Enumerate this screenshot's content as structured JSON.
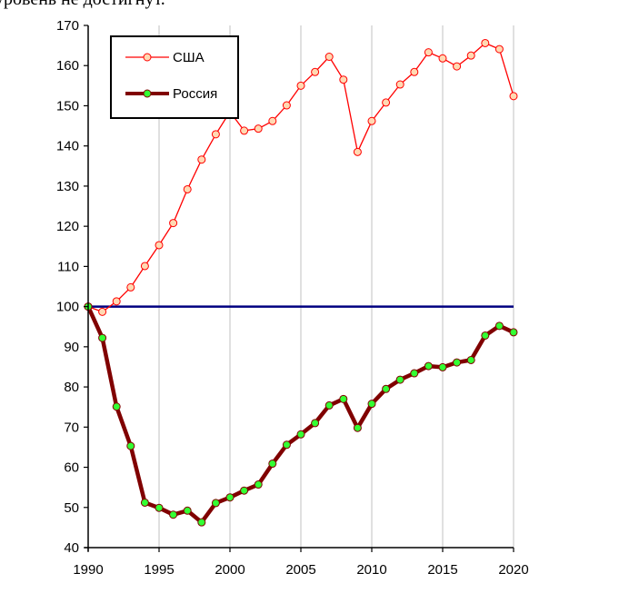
{
  "page_text": {
    "truncated_line": "уровень не достигнут."
  },
  "chart_data": {
    "type": "line",
    "xlim": [
      1990,
      2020
    ],
    "ylim": [
      40,
      170
    ],
    "xticks": [
      1990,
      1995,
      2000,
      2005,
      2010,
      2015,
      2020
    ],
    "yticks": [
      40,
      50,
      60,
      70,
      80,
      90,
      100,
      110,
      120,
      130,
      140,
      150,
      160,
      170
    ],
    "grid": "vertical",
    "legend_position": "top-left",
    "reference_line": {
      "y": 100,
      "color": "#000080"
    },
    "x": [
      1990,
      1991,
      1992,
      1993,
      1994,
      1995,
      1996,
      1997,
      1998,
      1999,
      2000,
      2001,
      2002,
      2003,
      2004,
      2005,
      2006,
      2007,
      2008,
      2009,
      2010,
      2011,
      2012,
      2013,
      2014,
      2015,
      2016,
      2017,
      2018,
      2019,
      2020
    ],
    "series": [
      {
        "name": "США",
        "color": "#ff0000",
        "marker_fill": "#ffd9b3",
        "values": [
          100,
          98.7,
          101.3,
          104.8,
          110.1,
          115.3,
          120.8,
          129.2,
          136.6,
          142.9,
          148.5,
          143.8,
          144.3,
          146.2,
          150.1,
          155.0,
          158.4,
          162.2,
          156.5,
          138.5,
          146.2,
          150.8,
          155.3,
          158.4,
          163.3,
          161.8,
          159.8,
          162.5,
          165.6,
          164.1,
          152.4
        ]
      },
      {
        "name": "Россия",
        "color": "#800000",
        "marker_fill": "#33ff33",
        "values": [
          100,
          92.2,
          75.1,
          65.3,
          51.2,
          49.9,
          48.2,
          49.2,
          46.3,
          51.1,
          52.5,
          54.2,
          55.7,
          60.9,
          65.6,
          68.2,
          71.0,
          75.4,
          77.0,
          69.8,
          75.8,
          79.5,
          81.8,
          83.4,
          85.2,
          84.9,
          86.1,
          86.7,
          92.8,
          95.2,
          93.6
        ]
      }
    ]
  }
}
